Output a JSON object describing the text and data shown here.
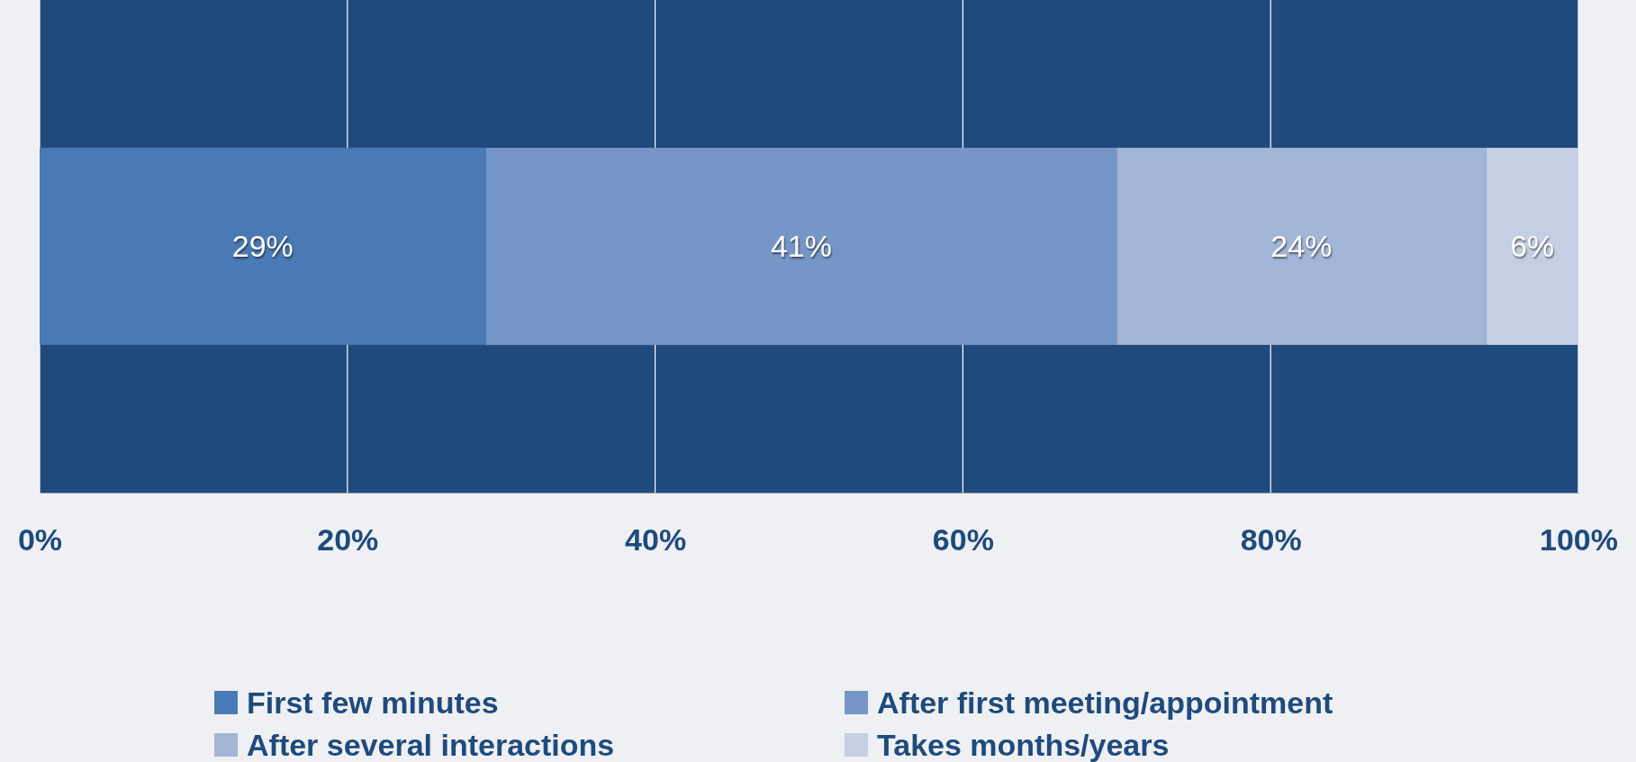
{
  "chart_data": {
    "type": "bar",
    "orientation": "horizontal",
    "stacked": true,
    "categories": [
      null
    ],
    "series": [
      {
        "name": "First few minutes",
        "color": "#4a7ab4",
        "values": [
          29
        ]
      },
      {
        "name": "After first meeting/appointment",
        "color": "#7596c6",
        "values": [
          41
        ]
      },
      {
        "name": "After several interactions",
        "color": "#a3b5d6",
        "values": [
          24
        ]
      },
      {
        "name": "Takes months/years",
        "color": "#c5cfe4",
        "values": [
          6
        ]
      }
    ],
    "xlim": [
      0,
      100
    ],
    "xticks": [
      {
        "value": 0,
        "label": "0%"
      },
      {
        "value": 20,
        "label": "20%"
      },
      {
        "value": 40,
        "label": "40%"
      },
      {
        "value": 60,
        "label": "60%"
      },
      {
        "value": 80,
        "label": "80%"
      },
      {
        "value": 100,
        "label": "100%"
      }
    ],
    "value_labels": [
      "29%",
      "41%",
      "24%",
      "6%"
    ],
    "grid": "x",
    "legend": "bottom"
  }
}
